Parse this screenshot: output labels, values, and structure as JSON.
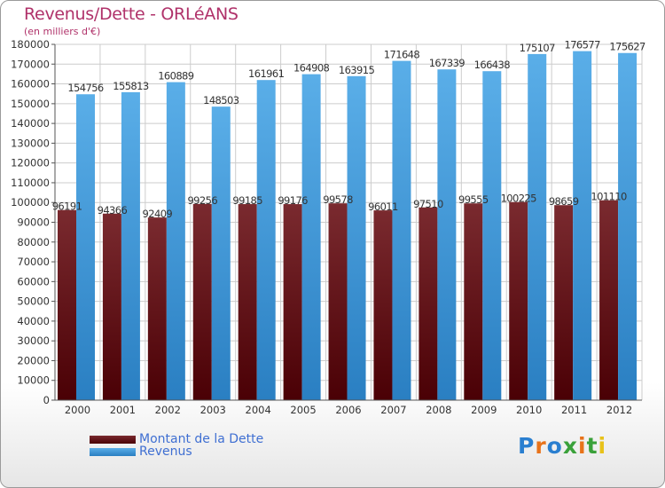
{
  "title": "Revenus/Dette - ORLéANS",
  "subtitle": "(en milliers d'€)",
  "logo": {
    "text": "Proxiti",
    "colors": [
      "#2a7fd0",
      "#e8731a",
      "#2a7fd0",
      "#3aa13a",
      "#e8731a",
      "#3aa13a",
      "#e8c21a"
    ]
  },
  "colors": {
    "debt_top": "#7a2a2f",
    "debt_bottom": "#4a0005",
    "revenue_top": "#5aaee8",
    "revenue_bottom": "#2a7fc2",
    "axis": "#555555",
    "grid": "#cccccc",
    "text": "#333333"
  },
  "legend": {
    "debt_label": "Montant de la Dette",
    "revenue_label": "Revenus"
  },
  "chart_data": {
    "type": "bar",
    "title": "Revenus/Dette - ORLéANS",
    "subtitle": "(en milliers d'€)",
    "xlabel": "",
    "ylabel": "",
    "ylim": [
      0,
      180000
    ],
    "yticks": [
      0,
      10000,
      20000,
      30000,
      40000,
      50000,
      60000,
      70000,
      80000,
      90000,
      100000,
      110000,
      120000,
      130000,
      140000,
      150000,
      160000,
      170000,
      180000
    ],
    "grid": true,
    "legend_position": "bottom-left",
    "categories": [
      "2000",
      "2001",
      "2002",
      "2003",
      "2004",
      "2005",
      "2006",
      "2007",
      "2008",
      "2009",
      "2010",
      "2011",
      "2012"
    ],
    "series": [
      {
        "name": "Montant de la Dette",
        "values": [
          96191,
          94366,
          92409,
          99256,
          99185,
          99176,
          99578,
          96011,
          97510,
          99555,
          100225,
          98659,
          101110
        ],
        "labels": [
          "96191",
          "94366",
          "92409",
          "99256",
          "99185",
          "99176",
          "99578",
          "96011",
          "97510",
          "99555",
          "100225",
          "98659",
          "101110"
        ]
      },
      {
        "name": "Revenus",
        "values": [
          154756,
          155813,
          160889,
          148503,
          161961,
          164908,
          163915,
          171648,
          167339,
          166438,
          175107,
          176577,
          175627
        ],
        "labels": [
          "154756",
          "155813",
          "160889",
          "148503",
          "161961",
          "164908",
          "163915",
          "171648",
          "167339",
          "166438",
          "175107",
          "176577",
          "175627"
        ]
      }
    ]
  }
}
